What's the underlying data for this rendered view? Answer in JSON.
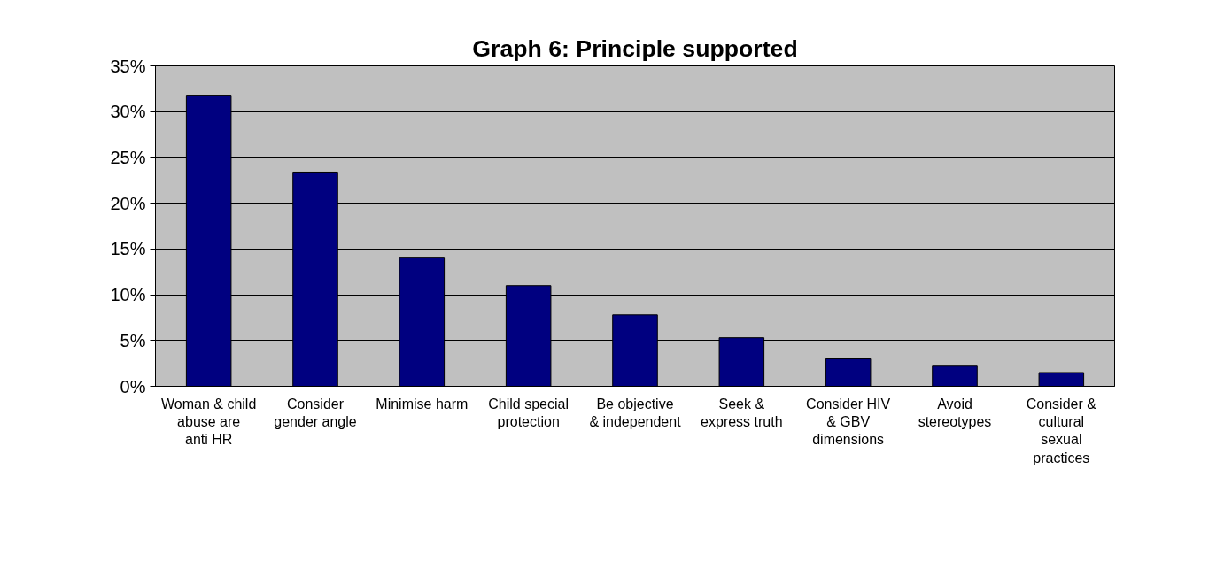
{
  "chart_data": {
    "type": "bar",
    "title": "Graph 6: Principle supported",
    "categories": [
      "Woman & child abuse are anti HR",
      "Consider gender angle",
      "Minimise harm",
      "Child special protection",
      "Be objective & independent",
      "Seek & express truth",
      "Consider HIV & GBV dimensions",
      "Avoid stereotypes",
      "Consider & cultural sexual practices"
    ],
    "values": [
      31.8,
      23.4,
      14.1,
      11.0,
      7.8,
      5.3,
      3.0,
      2.2,
      1.5
    ],
    "color": "#000080",
    "ylim": [
      0,
      35
    ],
    "yticks": [
      {
        "value": 0,
        "label": "0%"
      },
      {
        "value": 5,
        "label": "5%"
      },
      {
        "value": 10,
        "label": "10%"
      },
      {
        "value": 15,
        "label": "15%"
      },
      {
        "value": 20,
        "label": "20%"
      },
      {
        "value": 25,
        "label": "25%"
      },
      {
        "value": 30,
        "label": "30%"
      },
      {
        "value": 35,
        "label": "35%"
      }
    ],
    "grid": "y"
  }
}
